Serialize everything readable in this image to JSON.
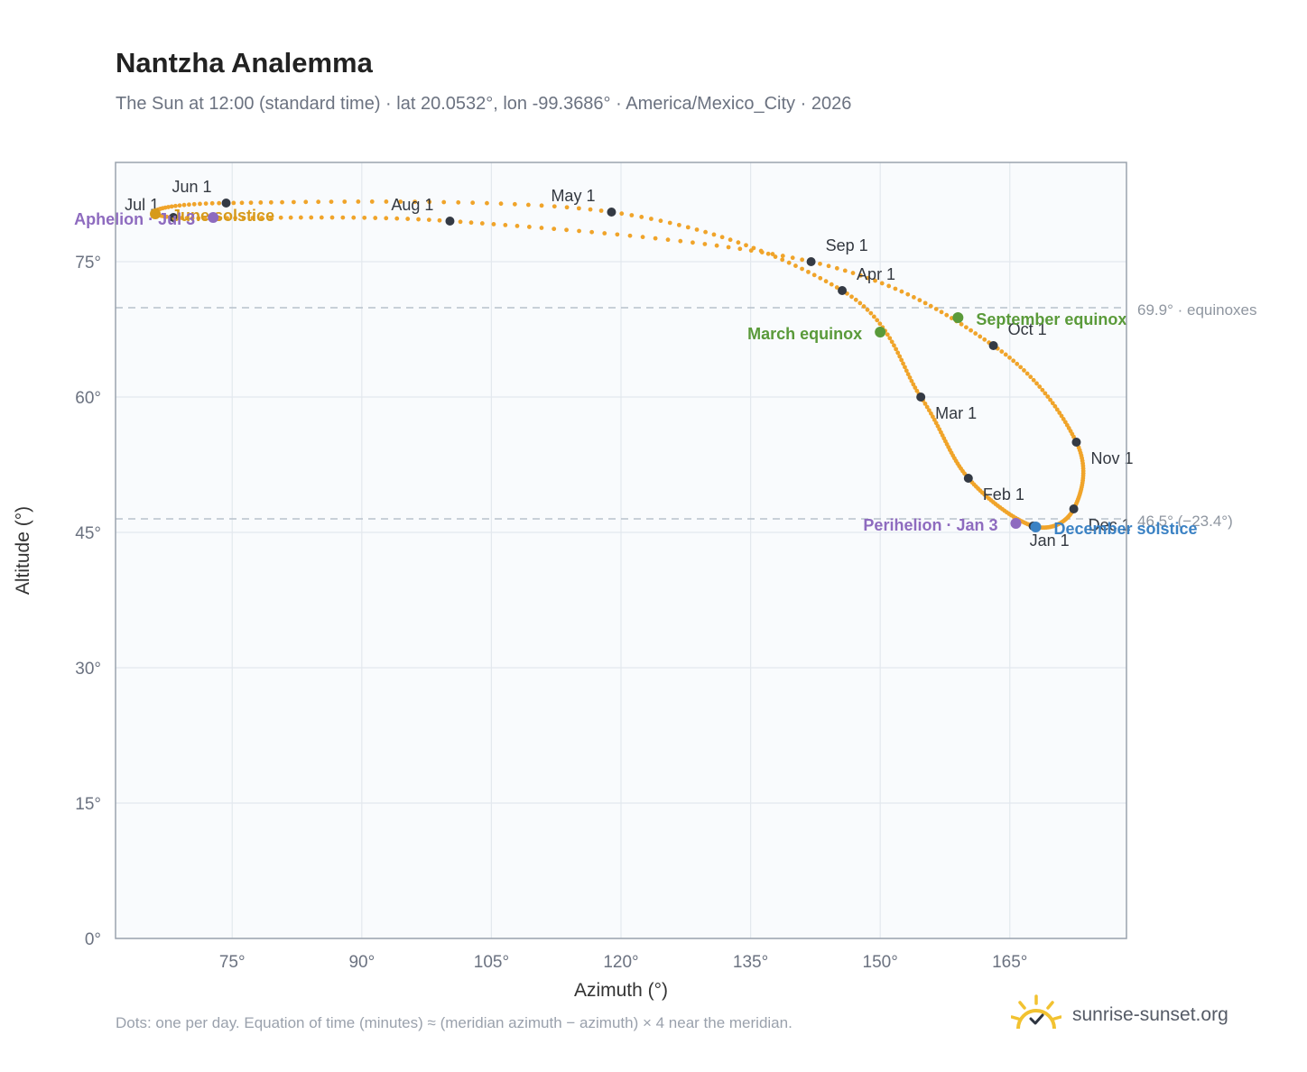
{
  "header": {
    "title": "Nantzha Analemma",
    "subtitle": "The Sun at 12:00 (standard time) · lat 20.0532°, lon -99.3686° · America/Mexico_City · 2026"
  },
  "footer": {
    "note": "Dots: one per day. Equation of time (minutes) ≈ (meridian azimuth − azimuth) × 4 near the meridian.",
    "brand": "sunrise-sunset.org"
  },
  "chart_data": {
    "type": "scatter",
    "title": "Nantzha Analemma",
    "xlabel": "Azimuth (°)",
    "ylabel": "Altitude (°)",
    "xlim": [
      61.5,
      178.5
    ],
    "ylim": [
      0,
      86
    ],
    "xticks": [
      75,
      90,
      105,
      120,
      135,
      150,
      165
    ],
    "xtick_labels": [
      "75°",
      "90°",
      "105°",
      "120°",
      "135°",
      "150°",
      "165°"
    ],
    "yticks": [
      0,
      15,
      30,
      45,
      60,
      75
    ],
    "ytick_labels": [
      "0°",
      "15°",
      "30°",
      "45°",
      "60°",
      "75°"
    ],
    "grid": true,
    "colors": {
      "path": "#f0a42a",
      "month_dot": "#343a44",
      "equinox": "#5a9a3a",
      "december_solstice": "#3b82c4",
      "june_solstice": "#d69a1c",
      "apsis": "#8e6bbf",
      "reference_line": "#b8c2cc"
    },
    "month_markers": [
      {
        "label": "Jan 1",
        "az": 167.7,
        "alt": 45.7
      },
      {
        "label": "Feb 1",
        "az": 160.2,
        "alt": 51.0
      },
      {
        "label": "Mar 1",
        "az": 154.7,
        "alt": 60.0
      },
      {
        "label": "Apr 1",
        "az": 145.6,
        "alt": 71.8
      },
      {
        "label": "May 1",
        "az": 118.9,
        "alt": 80.5
      },
      {
        "label": "Jun 1",
        "az": 74.3,
        "alt": 81.5
      },
      {
        "label": "Jul 1",
        "az": 68.2,
        "alt": 79.9
      },
      {
        "label": "Aug 1",
        "az": 100.2,
        "alt": 79.5
      },
      {
        "label": "Sep 1",
        "az": 142.0,
        "alt": 75.0
      },
      {
        "label": "Oct 1",
        "az": 163.1,
        "alt": 65.7
      },
      {
        "label": "Nov 1",
        "az": 172.7,
        "alt": 55.0
      },
      {
        "label": "Dec 1",
        "az": 172.4,
        "alt": 47.6
      }
    ],
    "events": [
      {
        "label": "March equinox",
        "az": 150.0,
        "alt": 67.2
      },
      {
        "label": "September equinox",
        "az": 159.0,
        "alt": 68.8
      },
      {
        "label": "December solstice",
        "az": 168.0,
        "alt": 45.6
      },
      {
        "label": "June solstice",
        "az": 66.1,
        "alt": 80.3
      },
      {
        "label": "Perihelion · Jan 3",
        "az": 165.7,
        "alt": 46.0
      },
      {
        "label": "Aphelion · Jul 3",
        "az": 72.8,
        "alt": 79.9
      }
    ],
    "reference_lines": [
      {
        "label": "69.9° · equinoxes",
        "alt": 69.9
      },
      {
        "label": "46.5° (−23.4°)",
        "alt": 46.5
      }
    ]
  }
}
